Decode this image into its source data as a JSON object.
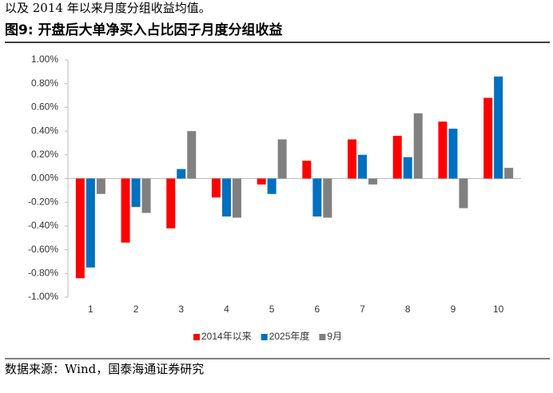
{
  "intro_text": "以及 2014 年以来月度分组收益均值。",
  "figure_title": "图9:  开盘后大单净买入占比因子月度分组收益",
  "source": "数据来源：Wind，国泰海通证券研究",
  "chart_data": {
    "type": "bar",
    "categories": [
      "1",
      "2",
      "3",
      "4",
      "5",
      "6",
      "7",
      "8",
      "9",
      "10"
    ],
    "series": [
      {
        "name": "2014年以来",
        "color": "#ff0000",
        "values": [
          -0.84,
          -0.54,
          -0.42,
          -0.16,
          -0.05,
          0.15,
          0.33,
          0.36,
          0.48,
          0.68
        ]
      },
      {
        "name": "2025年度",
        "color": "#0070c0",
        "values": [
          -0.75,
          -0.24,
          0.08,
          -0.32,
          -0.13,
          -0.32,
          0.2,
          0.18,
          0.42,
          0.86
        ]
      },
      {
        "name": "9月",
        "color": "#808080",
        "values": [
          -0.13,
          -0.29,
          0.4,
          -0.33,
          0.33,
          -0.33,
          -0.05,
          0.55,
          -0.25,
          0.09
        ]
      }
    ],
    "ylim": [
      -1,
      1
    ],
    "yticks": [
      {
        "value": -1,
        "label": "-1.00%"
      },
      {
        "value": -0.8,
        "label": "-0.80%"
      },
      {
        "value": -0.6,
        "label": "-0.60%"
      },
      {
        "value": -0.4,
        "label": "-0.40%"
      },
      {
        "value": -0.2,
        "label": "-0.20%"
      },
      {
        "value": 0,
        "label": "0.00%"
      },
      {
        "value": 0.2,
        "label": "0.20%"
      },
      {
        "value": 0.4,
        "label": "0.40%"
      },
      {
        "value": 0.6,
        "label": "0.60%"
      },
      {
        "value": 0.8,
        "label": "0.80%"
      },
      {
        "value": 1,
        "label": "1.00%"
      }
    ],
    "legend": "bottom"
  }
}
